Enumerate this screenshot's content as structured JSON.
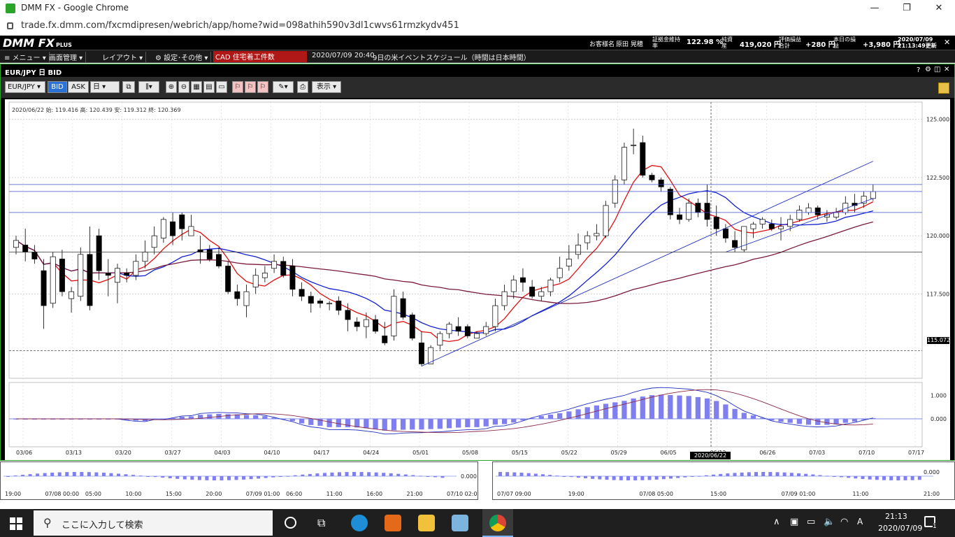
{
  "browser": {
    "window_title": "DMM FX - Google Chrome",
    "url": "trade.fx.dmm.com/fxcmdipresen/webrich/app/home?wid=098athih590v3dl1cwvs61rmzkydv451",
    "minimize": "—",
    "maximize": "❐",
    "close": "✕"
  },
  "appbar": {
    "logo": "DMM FX",
    "logo_sub": "PLUS",
    "customer_label": "お客様名",
    "customer_name": "原田 晃穂",
    "margin_rate_label": "証拠金維持率",
    "margin_rate": "122.98 %",
    "net_assets_label": "純資産",
    "net_assets": "419,020 円",
    "valuation_label": "評価損益合計",
    "valuation": "+280 円",
    "today_pl_label": "本日の損益",
    "today_pl": "+3,980 円",
    "updated": "2020/07/09 21:13:49更新"
  },
  "menubar": {
    "items": [
      "≡ メニュー ▾",
      "画面管理 ▾",
      "レイアウト ▾",
      "⚙ 設定･その他 ▾"
    ],
    "ticker_currency": "CAD",
    "ticker_text": "住宅着工件数",
    "news_time": "2020/07/09 20:40",
    "news_text": "9日の米イベントスケジュール（時間は日本時間）"
  },
  "chart_window": {
    "title": "EUR/JPY 日 BID",
    "controls": [
      "?",
      "⚙",
      "◫",
      "✕"
    ],
    "toolbar": {
      "pair": "EUR/JPY ▾",
      "bid": "BID",
      "ask": "ASK",
      "period": "日 ▾",
      "display": "表示 ▾"
    },
    "info_line": "2020/06/22 始: 119.416 高: 120.439 安: 119.312 終: 120.369",
    "last_price_label": "115.072",
    "crosshair_date": "2020/06/22"
  },
  "chart_data": {
    "type": "candlestick",
    "pair": "EUR/JPY",
    "y_axis_ticks": [
      "125.000",
      "122.500",
      "120.000",
      "117.500"
    ],
    "ylim": [
      114,
      125.5
    ],
    "x_axis_ticks": [
      "03/06",
      "03/13",
      "03/20",
      "03/27",
      "04/03",
      "04/10",
      "04/17",
      "04/24",
      "05/01",
      "05/08",
      "05/15",
      "05/22",
      "05/29",
      "06/05",
      "06/12",
      "06/26",
      "07/03",
      "07/10",
      "07/17"
    ],
    "macd_ticks": [
      "1.000",
      "0.000"
    ],
    "candles": [
      [
        119.5,
        120.0,
        119.2,
        119.8
      ],
      [
        119.6,
        120.3,
        118.9,
        119.3
      ],
      [
        119.3,
        119.6,
        118.8,
        119.0
      ],
      [
        118.5,
        119.0,
        116.0,
        117.0
      ],
      [
        117.1,
        119.3,
        116.9,
        119.1
      ],
      [
        119.0,
        119.4,
        117.4,
        117.6
      ],
      [
        117.3,
        117.8,
        116.7,
        117.6
      ],
      [
        117.4,
        119.5,
        117.2,
        119.2
      ],
      [
        119.2,
        120.4,
        116.8,
        117.0
      ],
      [
        120.0,
        120.3,
        118.1,
        118.5
      ],
      [
        118.4,
        119.0,
        117.4,
        118.3
      ],
      [
        118.0,
        118.8,
        117.1,
        118.6
      ],
      [
        118.4,
        118.6,
        118.0,
        118.3
      ],
      [
        118.3,
        119.2,
        118.1,
        118.9
      ],
      [
        118.9,
        119.8,
        118.6,
        119.3
      ],
      [
        119.5,
        120.4,
        119.2,
        120.0
      ],
      [
        119.9,
        120.8,
        119.7,
        120.7
      ],
      [
        120.6,
        121.0,
        119.6,
        120.0
      ],
      [
        120.9,
        121.0,
        119.8,
        120.3
      ],
      [
        120.0,
        120.9,
        120.0,
        120.4
      ],
      [
        119.4,
        120.0,
        118.8,
        119.3
      ],
      [
        119.4,
        119.6,
        118.9,
        119.0
      ],
      [
        119.2,
        119.5,
        118.6,
        118.7
      ],
      [
        118.7,
        118.9,
        117.5,
        117.6
      ],
      [
        117.6,
        117.9,
        117.0,
        117.3
      ],
      [
        117.0,
        117.9,
        116.5,
        117.6
      ],
      [
        117.8,
        118.6,
        117.5,
        118.3
      ],
      [
        118.2,
        118.7,
        118.0,
        118.4
      ],
      [
        118.6,
        119.2,
        118.4,
        118.9
      ],
      [
        118.9,
        119.1,
        118.2,
        118.3
      ],
      [
        118.7,
        119.0,
        117.4,
        117.7
      ],
      [
        117.7,
        118.0,
        117.2,
        117.4
      ],
      [
        117.4,
        117.6,
        116.7,
        117.1
      ],
      [
        117.2,
        117.3,
        116.9,
        117.1
      ],
      [
        117.1,
        117.2,
        116.8,
        117.1
      ],
      [
        117.2,
        117.4,
        116.6,
        116.8
      ],
      [
        116.8,
        117.1,
        115.9,
        116.4
      ],
      [
        116.3,
        116.5,
        115.9,
        116.1
      ],
      [
        116.1,
        116.7,
        115.6,
        116.4
      ],
      [
        116.4,
        116.6,
        115.8,
        115.9
      ],
      [
        115.7,
        116.3,
        115.3,
        115.4
      ],
      [
        115.7,
        117.7,
        115.5,
        117.4
      ],
      [
        117.3,
        117.6,
        116.4,
        116.5
      ],
      [
        116.6,
        116.7,
        115.5,
        115.6
      ],
      [
        115.4,
        115.9,
        114.4,
        114.5
      ],
      [
        114.5,
        115.3,
        114.5,
        115.2
      ],
      [
        115.3,
        115.9,
        115.1,
        115.8
      ],
      [
        115.8,
        116.3,
        115.6,
        116.2
      ],
      [
        116.1,
        116.5,
        115.7,
        115.9
      ],
      [
        116.1,
        116.2,
        115.6,
        115.7
      ],
      [
        115.6,
        115.9,
        115.6,
        115.8
      ],
      [
        115.8,
        116.3,
        115.7,
        116.1
      ],
      [
        116.1,
        117.3,
        115.9,
        117.0
      ],
      [
        117.0,
        117.9,
        116.8,
        117.6
      ],
      [
        117.6,
        118.3,
        117.3,
        118.1
      ],
      [
        118.2,
        118.6,
        117.6,
        118.0
      ],
      [
        117.8,
        118.1,
        117.3,
        117.4
      ],
      [
        117.4,
        117.8,
        117.2,
        117.6
      ],
      [
        117.6,
        118.2,
        117.4,
        118.1
      ],
      [
        118.2,
        119.1,
        118.0,
        118.6
      ],
      [
        118.7,
        119.6,
        118.5,
        119.0
      ],
      [
        119.2,
        120.1,
        119.0,
        119.6
      ],
      [
        119.7,
        120.2,
        119.4,
        120.0
      ],
      [
        120.0,
        120.5,
        119.8,
        120.1
      ],
      [
        120.0,
        121.5,
        119.9,
        121.3
      ],
      [
        121.4,
        122.6,
        121.2,
        122.4
      ],
      [
        122.4,
        124.0,
        122.2,
        123.8
      ],
      [
        123.9,
        124.6,
        123.5,
        123.9
      ],
      [
        124.0,
        124.3,
        122.5,
        122.6
      ],
      [
        122.6,
        122.7,
        122.3,
        122.4
      ],
      [
        122.4,
        122.5,
        121.9,
        122.1
      ],
      [
        122.0,
        122.1,
        120.7,
        120.9
      ],
      [
        120.9,
        121.2,
        120.5,
        120.7
      ],
      [
        120.7,
        121.6,
        120.6,
        121.4
      ],
      [
        121.4,
        121.6,
        120.8,
        121.0
      ],
      [
        121.4,
        122.2,
        120.4,
        120.7
      ],
      [
        120.8,
        121.3,
        120.0,
        120.3
      ],
      [
        120.3,
        120.5,
        119.7,
        119.9
      ],
      [
        119.8,
        120.2,
        119.3,
        119.5
      ],
      [
        119.4,
        120.3,
        119.3,
        120.4
      ],
      [
        120.3,
        120.6,
        119.9,
        120.5
      ],
      [
        120.5,
        120.8,
        120.3,
        120.7
      ],
      [
        120.5,
        120.7,
        120.2,
        120.3
      ],
      [
        120.3,
        120.8,
        119.8,
        120.4
      ],
      [
        120.4,
        120.9,
        120.2,
        120.7
      ],
      [
        120.7,
        121.3,
        120.6,
        121.1
      ],
      [
        121.0,
        121.4,
        120.9,
        121.2
      ],
      [
        121.2,
        121.3,
        120.7,
        120.9
      ],
      [
        120.8,
        121.1,
        120.6,
        120.9
      ],
      [
        120.8,
        121.2,
        120.7,
        121.0
      ],
      [
        121.0,
        121.7,
        120.9,
        121.4
      ],
      [
        121.4,
        121.8,
        121.0,
        121.3
      ],
      [
        121.4,
        121.9,
        121.2,
        121.7
      ],
      [
        121.6,
        122.2,
        121.5,
        121.9
      ]
    ]
  },
  "subwindows": [
    {
      "macd_tick": "0.000",
      "x_ticks": [
        "19:00",
        "07/08 00:00",
        "05:00",
        "10:00",
        "15:00",
        "20:00",
        "07/09 01:00",
        "06:00",
        "11:00",
        "16:00",
        "21:00",
        "07/10 02:00"
      ]
    },
    {
      "macd_tick": "0.000",
      "x_ticks": [
        "07/07 09:00",
        "19:00",
        "07/08 05:00",
        "15:00",
        "07/09 01:00",
        "11:00",
        "21:00"
      ]
    }
  ],
  "taskbar": {
    "search_placeholder": "ここに入力して検索",
    "time": "21:13",
    "date": "2020/07/09",
    "notif_count": "1"
  }
}
